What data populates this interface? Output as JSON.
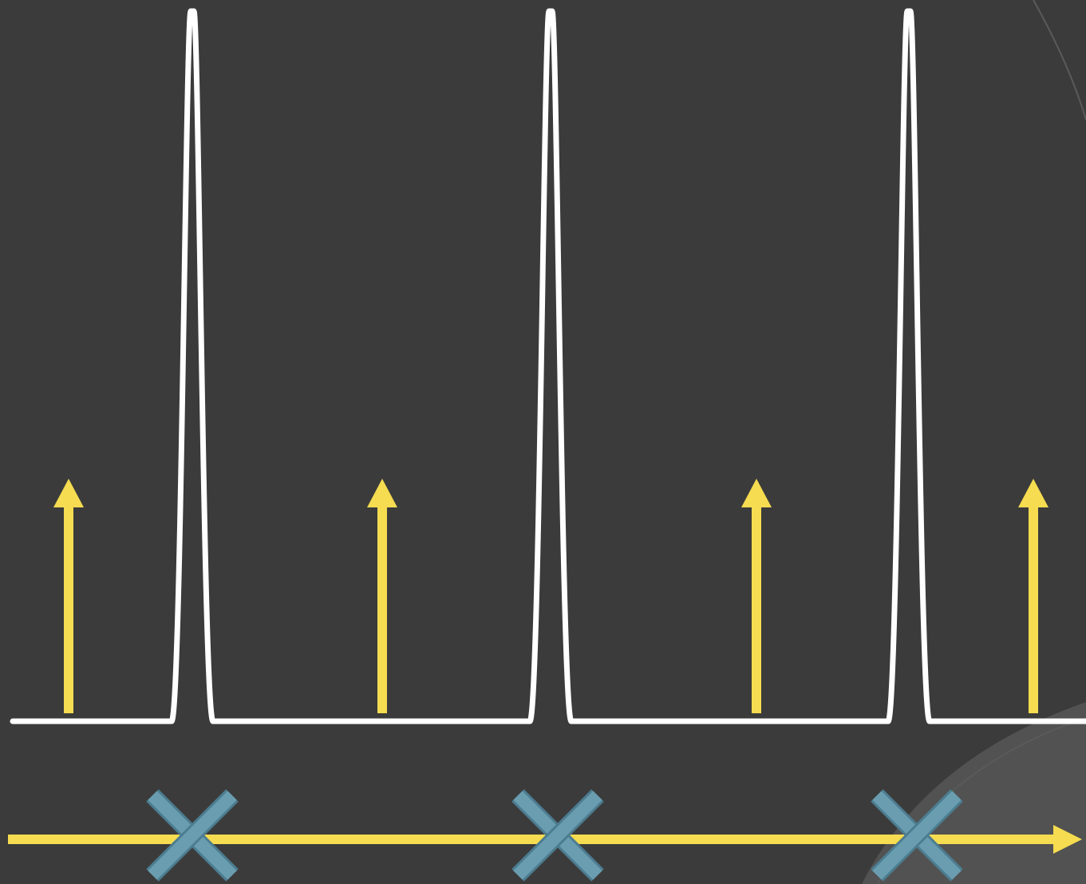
{
  "colors": {
    "background": "#3b3b3b",
    "background_arc_light": "#525252",
    "background_arc_stroke": "#5a5a5a",
    "pulse_curve": "#ffffff",
    "sample_arrows": "#f5dc50",
    "axis": "#f5dc50",
    "x_markers": "#6a9db0",
    "x_marker_outline": "#4c7c8f"
  },
  "diagram": {
    "pulse_count": 3,
    "sample_arrow_count": 4,
    "x_marker_count": 3,
    "axis_direction": "right",
    "marker_icon": "x-mark-icon",
    "arrow_icon": "up-arrow-icon"
  }
}
